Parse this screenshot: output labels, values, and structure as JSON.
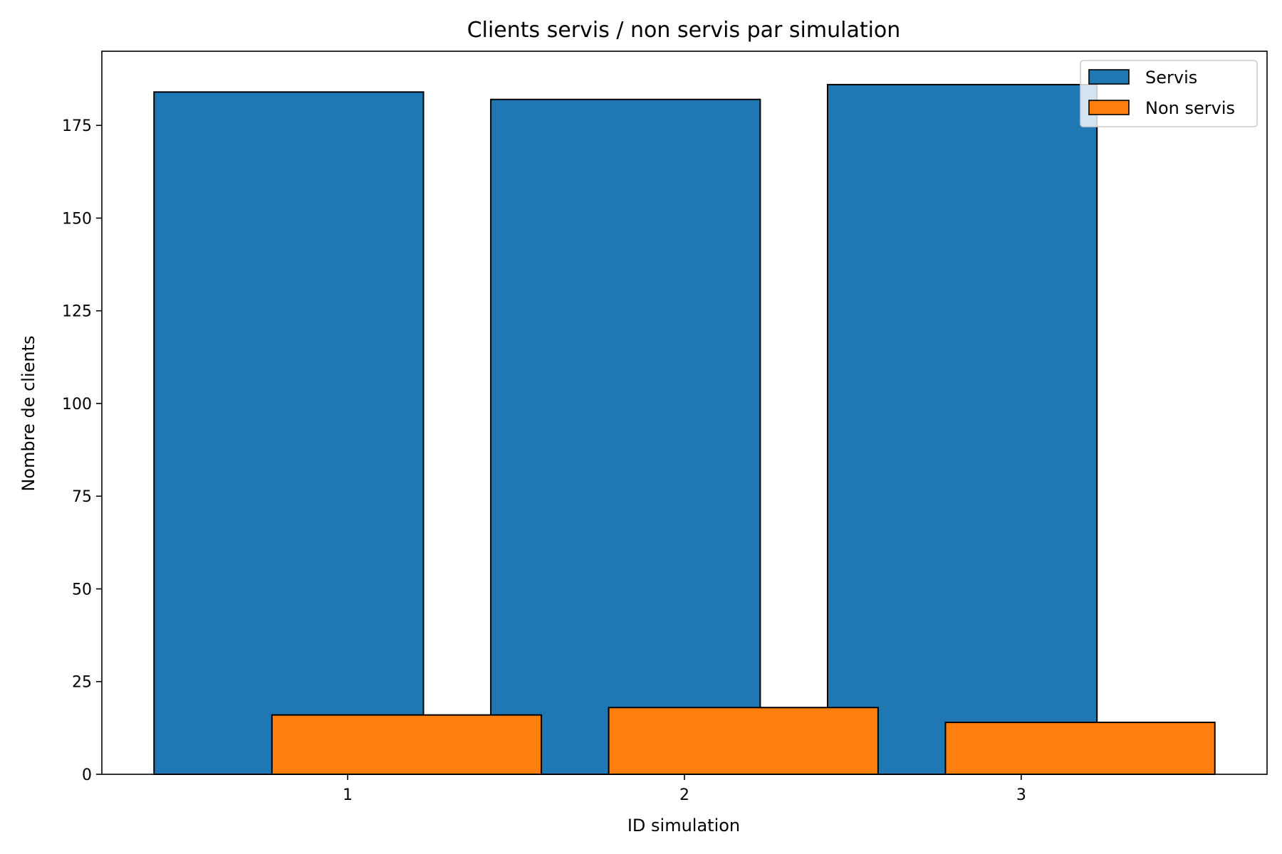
{
  "chart_data": {
    "type": "bar",
    "title": "Clients servis / non servis par simulation",
    "xlabel": "ID simulation",
    "ylabel": "Nombre de clients",
    "categories": [
      "1",
      "2",
      "3"
    ],
    "series": [
      {
        "name": "Servis",
        "values": [
          184,
          182,
          186
        ],
        "color": "#1f77b4"
      },
      {
        "name": "Non servis",
        "values": [
          16,
          18,
          14
        ],
        "color": "#ff7f0e"
      }
    ],
    "ylim": [
      0,
      195
    ],
    "yticks": [
      0,
      25,
      50,
      75,
      100,
      125,
      150,
      175
    ],
    "grid": false,
    "legend_position": "top-right"
  }
}
